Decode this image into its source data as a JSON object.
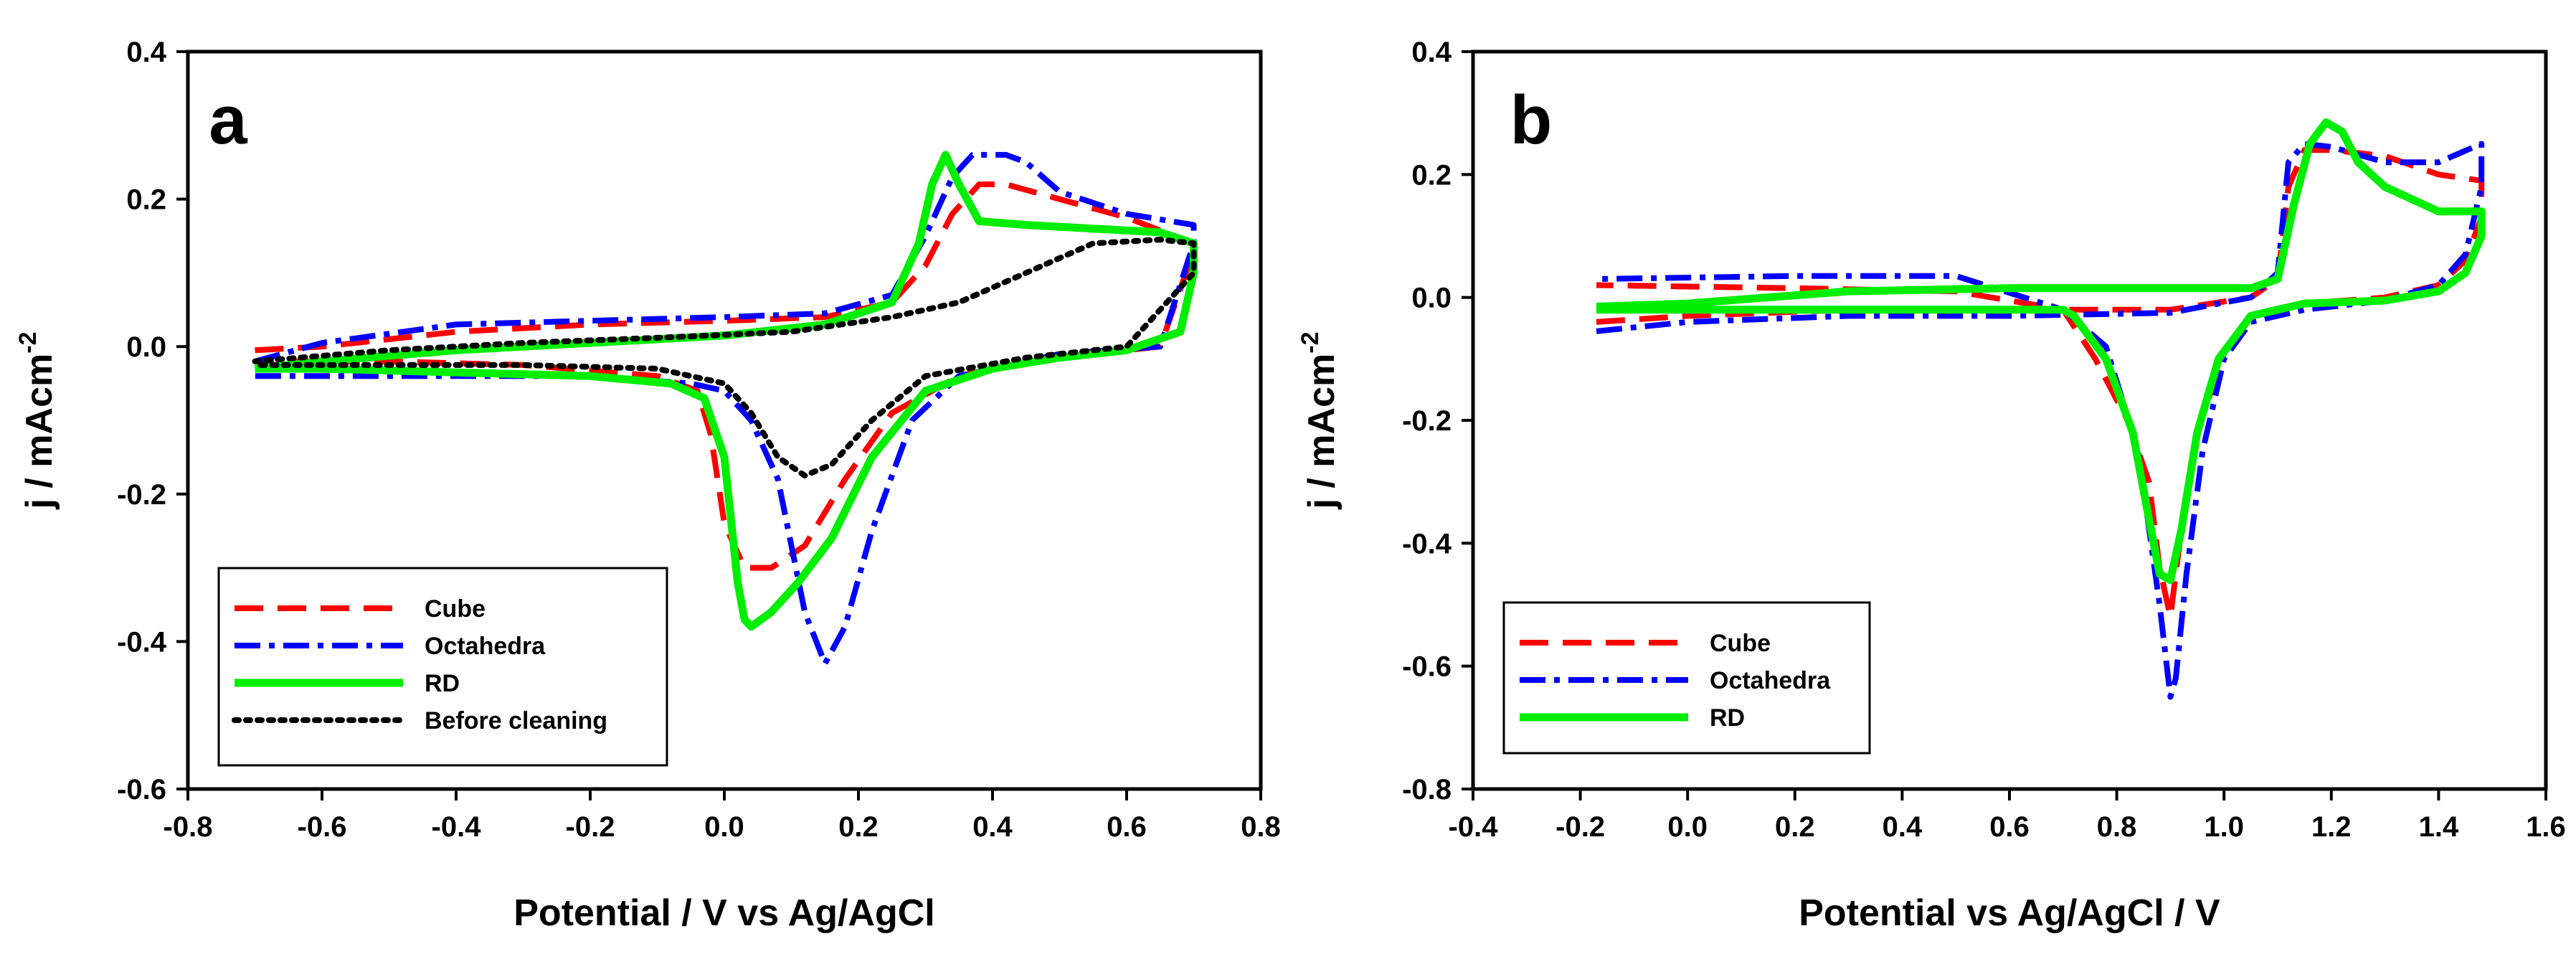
{
  "chart_data": [
    {
      "type": "line",
      "panel_label": "a",
      "xlabel": "Potential / V vs Ag/AgCl",
      "ylabel": "j / mAcm",
      "ylabel_superscript": "-2",
      "xlim": [
        -0.8,
        0.8
      ],
      "ylim": [
        -0.6,
        0.4
      ],
      "xticks": [
        -0.8,
        -0.6,
        -0.4,
        -0.2,
        0.0,
        0.2,
        0.4,
        0.6,
        0.8
      ],
      "xtick_labels": [
        "-0.8",
        "-0.6",
        "-0.4",
        "-0.2",
        "0.0",
        "0.2",
        "0.4",
        "0.6",
        "0.8"
      ],
      "yticks": [
        -0.6,
        -0.4,
        -0.2,
        0.0,
        0.2,
        0.4
      ],
      "ytick_labels": [
        "-0.6",
        "-0.4",
        "-0.2",
        "0.0",
        "0.2",
        "0.4"
      ],
      "grid": false,
      "legend_position": "bottom-left",
      "series": [
        {
          "name": "Cube",
          "color": "#ff0000",
          "style": "dashed",
          "x": [
            -0.7,
            -0.6,
            -0.4,
            -0.2,
            0.0,
            0.15,
            0.25,
            0.3,
            0.34,
            0.38,
            0.42,
            0.5,
            0.6,
            0.7,
            0.7,
            0.65,
            0.55,
            0.45,
            0.35,
            0.25,
            0.18,
            0.12,
            0.07,
            0.03,
            0.0,
            -0.02,
            -0.04,
            -0.1,
            -0.3,
            -0.5,
            -0.7
          ],
          "y": [
            -0.005,
            0.0,
            0.02,
            0.03,
            0.035,
            0.04,
            0.06,
            0.11,
            0.18,
            0.22,
            0.22,
            0.2,
            0.175,
            0.14,
            0.13,
            0.0,
            -0.01,
            -0.02,
            -0.04,
            -0.09,
            -0.18,
            -0.27,
            -0.3,
            -0.3,
            -0.24,
            -0.12,
            -0.06,
            -0.04,
            -0.025,
            -0.02,
            -0.02
          ]
        },
        {
          "name": "Octahedra",
          "color": "#0000ff",
          "style": "dash-dot",
          "x": [
            -0.7,
            -0.6,
            -0.4,
            -0.2,
            0.0,
            0.15,
            0.25,
            0.3,
            0.34,
            0.37,
            0.42,
            0.45,
            0.5,
            0.6,
            0.7,
            0.7,
            0.65,
            0.5,
            0.35,
            0.28,
            0.22,
            0.18,
            0.15,
            0.12,
            0.08,
            0.04,
            0.0,
            -0.05,
            -0.2,
            -0.4,
            -0.6,
            -0.7
          ],
          "y": [
            -0.02,
            0.005,
            0.03,
            0.035,
            0.04,
            0.045,
            0.07,
            0.15,
            0.23,
            0.26,
            0.26,
            0.25,
            0.21,
            0.18,
            0.165,
            0.14,
            0.0,
            -0.01,
            -0.04,
            -0.1,
            -0.25,
            -0.38,
            -0.43,
            -0.36,
            -0.18,
            -0.1,
            -0.06,
            -0.05,
            -0.04,
            -0.04,
            -0.04,
            -0.04
          ]
        },
        {
          "name": "RD",
          "color": "#00ee00",
          "style": "solid",
          "x": [
            -0.7,
            -0.6,
            -0.4,
            -0.2,
            0.0,
            0.15,
            0.25,
            0.29,
            0.31,
            0.33,
            0.35,
            0.38,
            0.45,
            0.55,
            0.65,
            0.7,
            0.7,
            0.68,
            0.6,
            0.5,
            0.4,
            0.3,
            0.22,
            0.16,
            0.11,
            0.07,
            0.04,
            0.03,
            0.02,
            0.0,
            -0.03,
            -0.08,
            -0.2,
            -0.4,
            -0.6,
            -0.7
          ],
          "y": [
            -0.03,
            -0.02,
            -0.005,
            0.005,
            0.015,
            0.03,
            0.06,
            0.14,
            0.22,
            0.26,
            0.22,
            0.17,
            0.165,
            0.16,
            0.155,
            0.14,
            0.1,
            0.02,
            -0.005,
            -0.015,
            -0.03,
            -0.06,
            -0.15,
            -0.26,
            -0.32,
            -0.36,
            -0.38,
            -0.37,
            -0.32,
            -0.15,
            -0.07,
            -0.05,
            -0.04,
            -0.035,
            -0.03,
            -0.03
          ]
        },
        {
          "name": "Before cleaning",
          "color": "#000000",
          "style": "dotted",
          "x": [
            -0.7,
            -0.5,
            -0.3,
            -0.1,
            0.1,
            0.25,
            0.35,
            0.45,
            0.55,
            0.65,
            0.7,
            0.7,
            0.6,
            0.45,
            0.3,
            0.22,
            0.16,
            0.12,
            0.08,
            0.04,
            0.0,
            -0.1,
            -0.3,
            -0.5,
            -0.7
          ],
          "y": [
            -0.02,
            -0.005,
            0.005,
            0.012,
            0.02,
            0.04,
            0.06,
            0.1,
            0.14,
            0.145,
            0.14,
            0.1,
            0.0,
            -0.015,
            -0.04,
            -0.1,
            -0.16,
            -0.175,
            -0.15,
            -0.09,
            -0.05,
            -0.03,
            -0.025,
            -0.025,
            -0.025
          ]
        }
      ]
    },
    {
      "type": "line",
      "panel_label": "b",
      "xlabel": "Potential vs Ag/AgCl / V",
      "ylabel": "j / mAcm",
      "ylabel_superscript": "-2",
      "xlim": [
        -0.4,
        1.6
      ],
      "ylim": [
        -0.8,
        0.4
      ],
      "xticks": [
        -0.4,
        -0.2,
        0.0,
        0.2,
        0.4,
        0.6,
        0.8,
        1.0,
        1.2,
        1.4,
        1.6
      ],
      "xtick_labels": [
        "-0.4",
        "-0.2",
        "0.0",
        "0.2",
        "0.4",
        "0.6",
        "0.8",
        "1.0",
        "1.2",
        "1.4",
        "1.6"
      ],
      "yticks": [
        -0.8,
        -0.6,
        -0.4,
        -0.2,
        0.0,
        0.2,
        0.4
      ],
      "ytick_labels": [
        "-0.8",
        "-0.6",
        "-0.4",
        "-0.2",
        "0.0",
        "0.2",
        "0.4"
      ],
      "grid": false,
      "legend_position": "bottom-left",
      "series": [
        {
          "name": "Cube",
          "color": "#ff0000",
          "style": "dashed",
          "x": [
            -0.17,
            0.0,
            0.3,
            0.6,
            0.9,
            1.05,
            1.1,
            1.12,
            1.15,
            1.2,
            1.3,
            1.4,
            1.48,
            1.48,
            1.45,
            1.4,
            1.3,
            1.15,
            1.05,
            1.0,
            0.95,
            0.92,
            0.9,
            0.88,
            0.86,
            0.82,
            0.76,
            0.7,
            0.5,
            0.2,
            -0.17
          ],
          "y": [
            -0.04,
            -0.03,
            -0.02,
            -0.02,
            -0.02,
            0.0,
            0.03,
            0.18,
            0.24,
            0.24,
            0.23,
            0.2,
            0.19,
            0.13,
            0.06,
            0.02,
            0.0,
            -0.01,
            -0.03,
            -0.09,
            -0.22,
            -0.38,
            -0.52,
            -0.44,
            -0.3,
            -0.2,
            -0.1,
            -0.02,
            0.01,
            0.015,
            0.02
          ]
        },
        {
          "name": "Octahedra",
          "color": "#0000ff",
          "style": "dash-dot",
          "x": [
            -0.17,
            0.0,
            0.3,
            0.6,
            0.9,
            1.05,
            1.1,
            1.12,
            1.15,
            1.2,
            1.3,
            1.4,
            1.48,
            1.48,
            1.45,
            1.4,
            1.3,
            1.15,
            1.05,
            1.0,
            0.96,
            0.93,
            0.91,
            0.9,
            0.88,
            0.84,
            0.78,
            0.7,
            0.5,
            0.2,
            -0.17
          ],
          "y": [
            -0.055,
            -0.04,
            -0.03,
            -0.03,
            -0.025,
            0.0,
            0.04,
            0.22,
            0.25,
            0.245,
            0.22,
            0.22,
            0.25,
            0.18,
            0.07,
            0.02,
            -0.005,
            -0.02,
            -0.04,
            -0.1,
            -0.25,
            -0.45,
            -0.62,
            -0.65,
            -0.5,
            -0.25,
            -0.08,
            -0.02,
            0.035,
            0.035,
            0.03
          ]
        },
        {
          "name": "RD",
          "color": "#00ee00",
          "style": "solid",
          "x": [
            -0.17,
            0.0,
            0.3,
            0.6,
            0.9,
            1.05,
            1.1,
            1.13,
            1.16,
            1.19,
            1.22,
            1.25,
            1.3,
            1.4,
            1.48,
            1.48,
            1.45,
            1.4,
            1.3,
            1.15,
            1.05,
            0.99,
            0.95,
            0.92,
            0.9,
            0.88,
            0.86,
            0.83,
            0.78,
            0.72,
            0.7,
            0.5,
            0.2,
            -0.17
          ],
          "y": [
            -0.015,
            -0.01,
            0.01,
            0.015,
            0.015,
            0.015,
            0.03,
            0.15,
            0.25,
            0.285,
            0.27,
            0.22,
            0.18,
            0.14,
            0.14,
            0.1,
            0.04,
            0.01,
            -0.005,
            -0.01,
            -0.03,
            -0.1,
            -0.22,
            -0.38,
            -0.46,
            -0.45,
            -0.36,
            -0.22,
            -0.1,
            -0.03,
            -0.02,
            -0.02,
            -0.02,
            -0.02
          ]
        }
      ]
    }
  ]
}
